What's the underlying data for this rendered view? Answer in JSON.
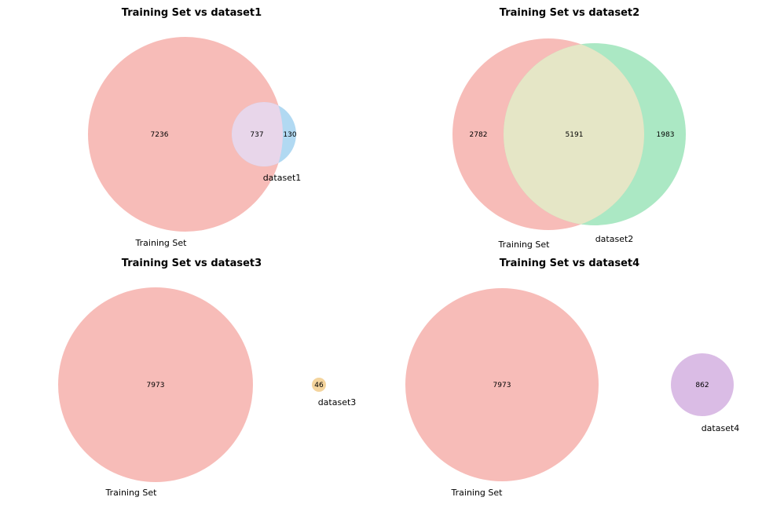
{
  "figure": {
    "panels": [
      {
        "title": "Training Set vs dataset1",
        "set_a": {
          "label": "Training Set",
          "color": "#f4a6a0"
        },
        "set_b": {
          "label": "dataset1",
          "color": "#9ecfef"
        },
        "overlap_color": "#e8d6ea",
        "regions": {
          "only_a": "7236",
          "both": "737",
          "only_b": "130"
        }
      },
      {
        "title": "Training Set vs dataset2",
        "set_a": {
          "label": "Training Set",
          "color": "#f4a6a0"
        },
        "set_b": {
          "label": "dataset2",
          "color": "#8fe0b0"
        },
        "overlap_color": "#e5e6c6",
        "regions": {
          "only_a": "2782",
          "both": "5191",
          "only_b": "1983"
        }
      },
      {
        "title": "Training Set vs dataset3",
        "set_a": {
          "label": "Training Set",
          "color": "#f4a6a0"
        },
        "set_b": {
          "label": "dataset3",
          "color": "#f2cc8c"
        },
        "regions": {
          "only_a": "7973",
          "only_b": "46"
        }
      },
      {
        "title": "Training Set vs dataset4",
        "set_a": {
          "label": "Training Set",
          "color": "#f4a6a0"
        },
        "set_b": {
          "label": "dataset4",
          "color": "#d4b0e0"
        },
        "regions": {
          "only_a": "7973",
          "only_b": "862"
        }
      }
    ]
  }
}
